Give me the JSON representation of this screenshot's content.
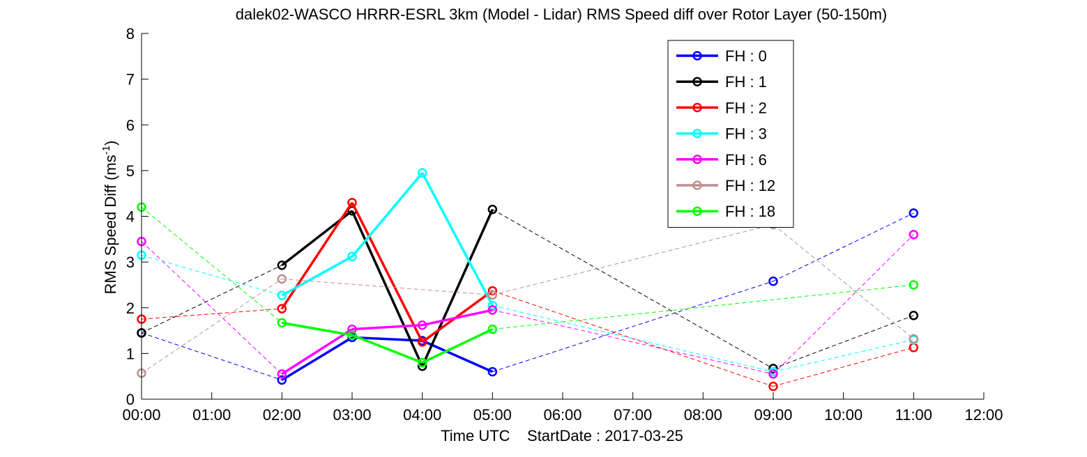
{
  "chart_data": {
    "type": "line",
    "title": "dalek02-WASCO HRRR-ESRL 3km (Model - Lidar) RMS Speed diff over Rotor Layer (50-150m)",
    "xlabel": "Time UTC    StartDate : 2017-03-25",
    "ylabel_main": "RMS Speed Diff (ms",
    "ylabel_sup": "-1",
    "ylabel_end": ")",
    "x_unit": "hour UTC",
    "xlim": [
      0,
      12
    ],
    "ylim": [
      0,
      8
    ],
    "x_ticks": [
      "00:00",
      "01:00",
      "02:00",
      "03:00",
      "04:00",
      "05:00",
      "06:00",
      "07:00",
      "08:00",
      "09:00",
      "10:00",
      "11:00",
      "12:00"
    ],
    "y_ticks": [
      "0",
      "1",
      "2",
      "3",
      "4",
      "5",
      "6",
      "7",
      "8"
    ],
    "grid": false,
    "legend_position": "top-right",
    "note": "Solid thick lines connect consecutive hourly points; dashed thin lines connect points across missing hours.",
    "series": [
      {
        "name": "FH : 0",
        "color": "#0000ff",
        "x": [
          0,
          2,
          3,
          4,
          5,
          9,
          11
        ],
        "y": [
          1.45,
          0.42,
          1.35,
          1.28,
          0.6,
          2.58,
          4.07
        ]
      },
      {
        "name": "FH : 1",
        "color": "#000000",
        "x": [
          0,
          2,
          3,
          4,
          5,
          9,
          11
        ],
        "y": [
          1.45,
          2.93,
          4.12,
          0.72,
          4.15,
          0.67,
          1.83
        ]
      },
      {
        "name": "FH : 2",
        "color": "#ff0000",
        "x": [
          0,
          2,
          3,
          4,
          5,
          9,
          11
        ],
        "y": [
          1.75,
          1.98,
          4.3,
          1.25,
          2.37,
          0.28,
          1.13
        ]
      },
      {
        "name": "FH : 3",
        "color": "#00ffff",
        "x": [
          0,
          2,
          3,
          4,
          5,
          9,
          11
        ],
        "y": [
          3.15,
          2.27,
          3.12,
          4.95,
          2.05,
          0.6,
          1.3
        ]
      },
      {
        "name": "FH : 6",
        "color": "#ff00ff",
        "x": [
          0,
          2,
          3,
          4,
          5,
          9,
          11
        ],
        "y": [
          3.45,
          0.55,
          1.53,
          1.62,
          1.95,
          0.55,
          3.6
        ]
      },
      {
        "name": "FH : 12",
        "color": "#bc8f8f",
        "x": [
          0,
          2,
          5,
          9,
          11
        ],
        "y": [
          0.57,
          2.63,
          2.28,
          3.82,
          1.32
        ]
      },
      {
        "name": "FH : 18",
        "color": "#00ff00",
        "x": [
          0,
          2,
          3,
          4,
          5,
          11
        ],
        "y": [
          4.2,
          1.67,
          1.4,
          0.8,
          1.53,
          2.5
        ]
      }
    ]
  }
}
